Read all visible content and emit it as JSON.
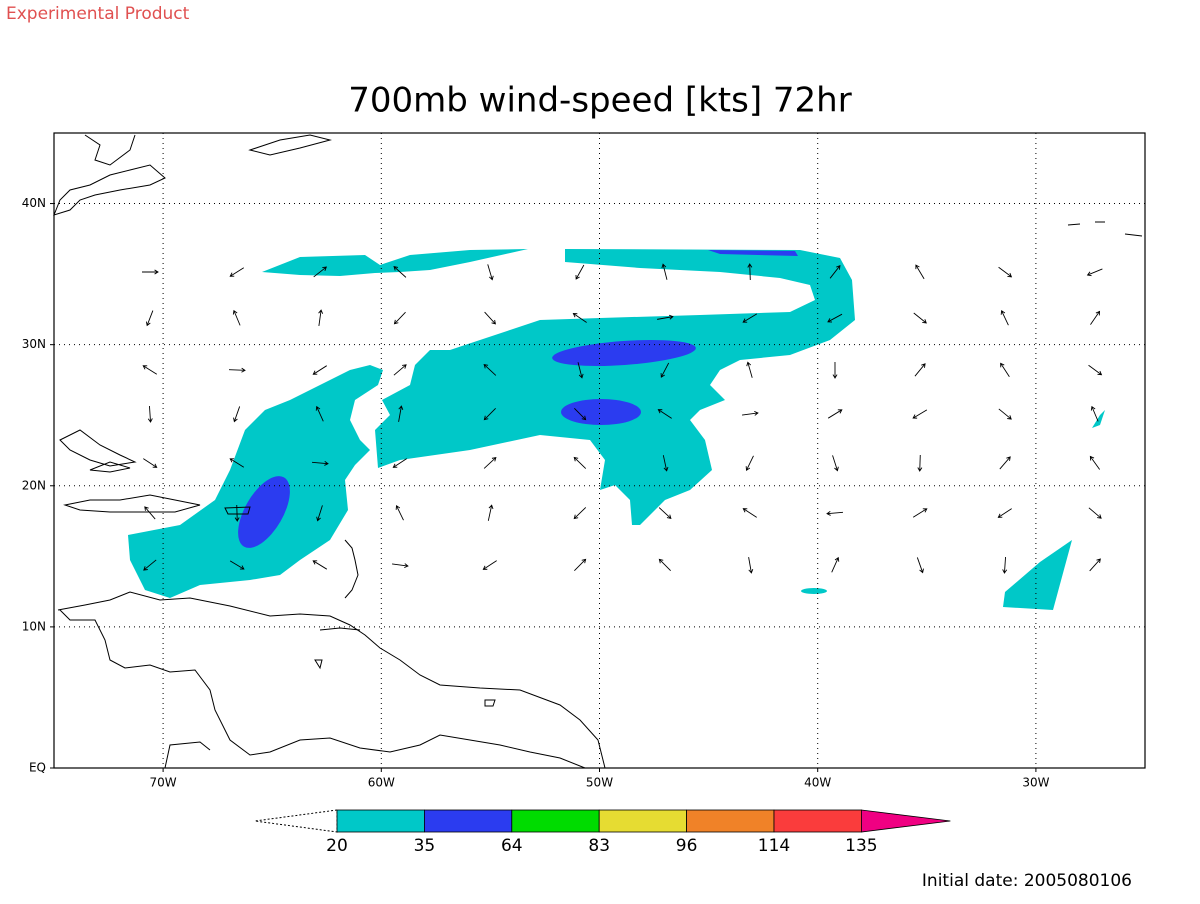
{
  "header": {
    "label": "Experimental Product"
  },
  "map": {
    "title": "700mb wind-speed [kts] 72hr",
    "xlim": [
      -75,
      -25
    ],
    "ylim": [
      0,
      45
    ],
    "xticks": [
      {
        "value": -70,
        "label": "70W"
      },
      {
        "value": -60,
        "label": "60W"
      },
      {
        "value": -50,
        "label": "50W"
      },
      {
        "value": -40,
        "label": "40W"
      },
      {
        "value": -30,
        "label": "30W"
      }
    ],
    "yticks": [
      {
        "value": 0,
        "label": "EQ"
      },
      {
        "value": 10,
        "label": "10N"
      },
      {
        "value": 20,
        "label": "20N"
      },
      {
        "value": 30,
        "label": "30N"
      },
      {
        "value": 40,
        "label": "40N"
      }
    ],
    "grid": true
  },
  "colorbar": {
    "levels": [
      20,
      35,
      64,
      83,
      96,
      114,
      135
    ],
    "colors": [
      "#00c8c8",
      "#2b3cf0",
      "#00dc00",
      "#e6dc32",
      "#f08228",
      "#fa3c3c",
      "#f00082"
    ]
  },
  "footer": {
    "initial_date": "Initial date: 2005080106"
  }
}
